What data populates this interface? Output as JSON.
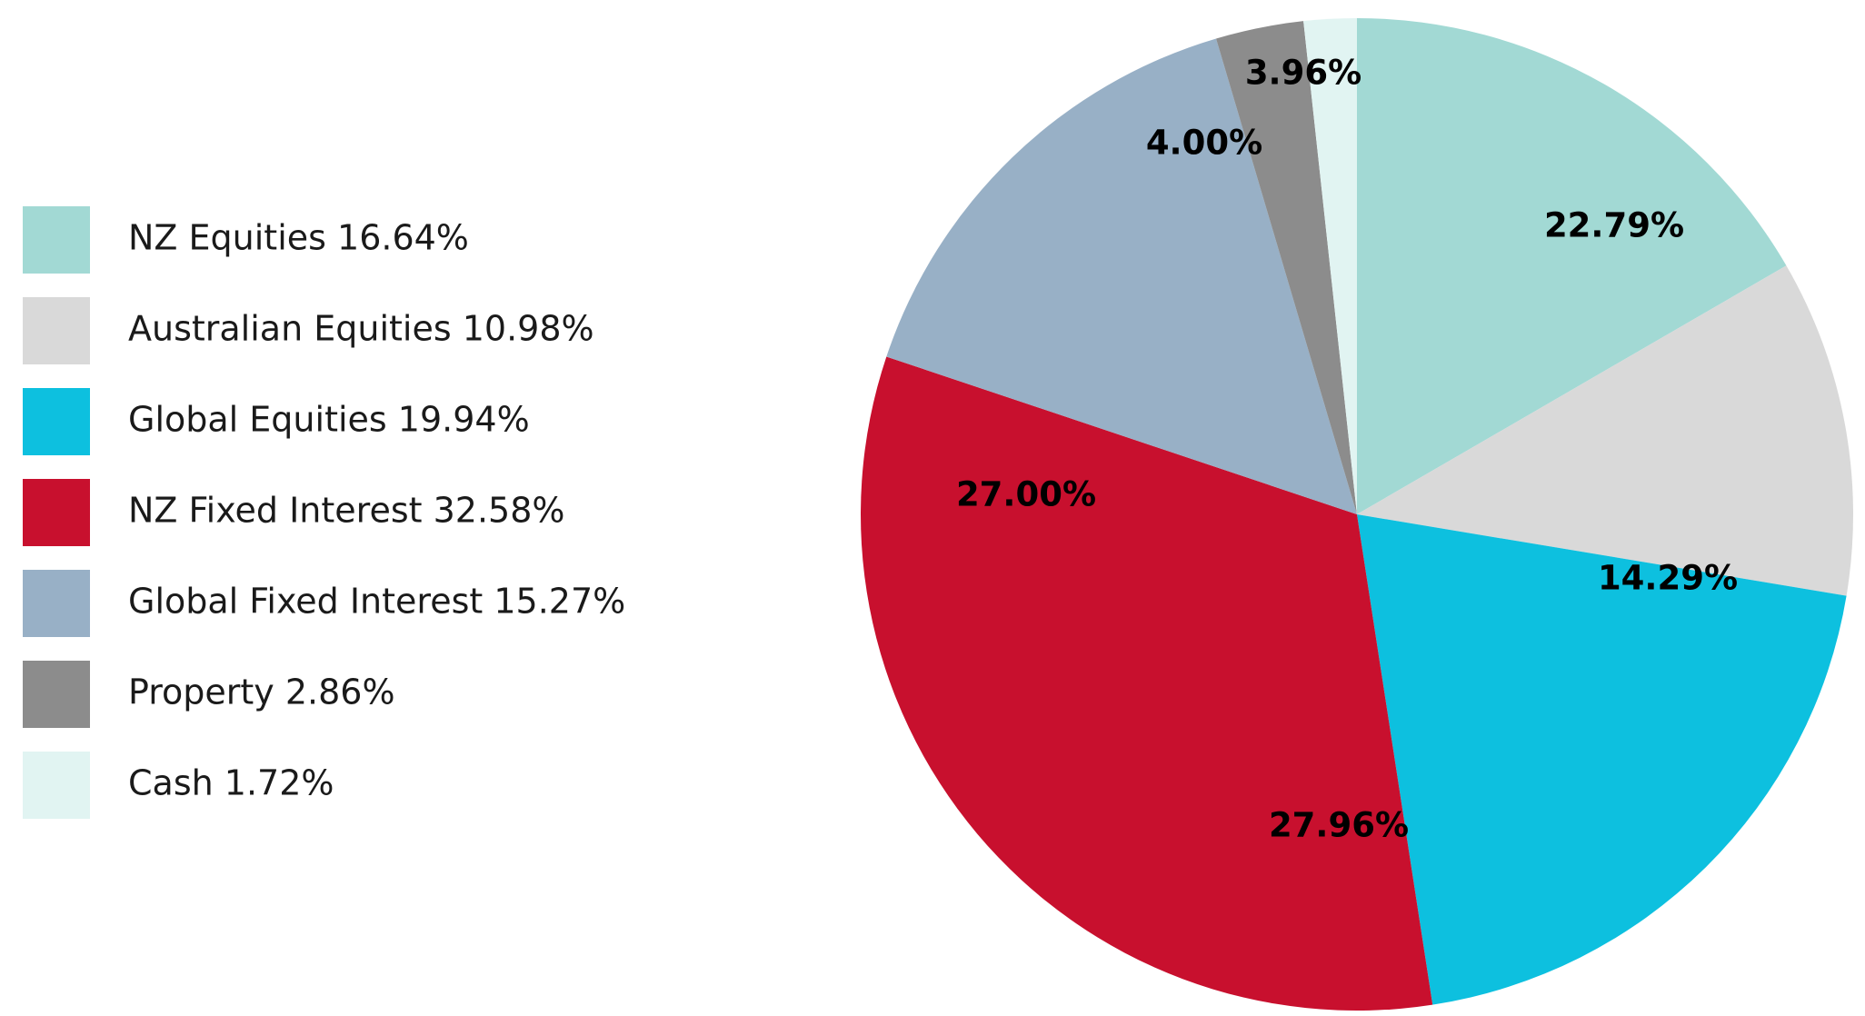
{
  "chart_data": {
    "type": "pie",
    "categories": [
      "NZ Equities 16.64%",
      "Australian Equities 10.98%",
      "Global Equities 19.94%",
      "NZ Fixed Interest 32.58%",
      "Global Fixed Interest 15.27%",
      "Property 2.86%",
      "Cash 1.72%"
    ],
    "values": [
      16.64,
      10.98,
      19.94,
      32.58,
      15.27,
      2.86,
      1.72
    ],
    "colors": [
      "#a2d9d4",
      "#d9d9d9",
      "#0dc0df",
      "#c8102e",
      "#98b0c6",
      "#8c8c8c",
      "#e1f4f2"
    ],
    "annotations": [
      "22.79%",
      "14.29%",
      "27.96%",
      "27.00%",
      "4.00%",
      "3.96%"
    ]
  }
}
